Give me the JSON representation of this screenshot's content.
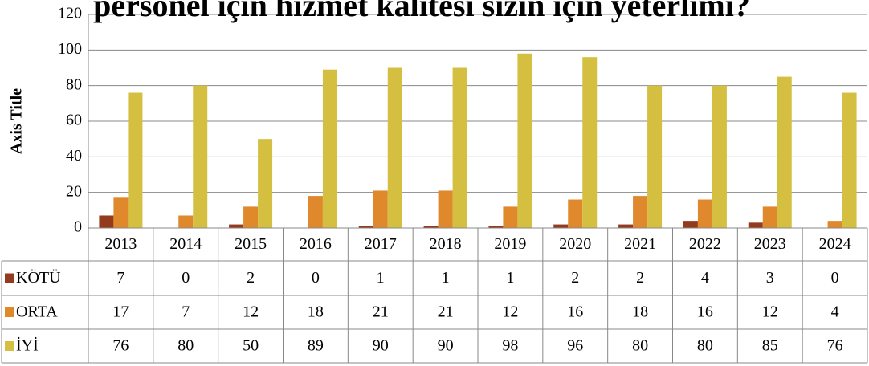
{
  "chart_data": {
    "type": "bar",
    "title": "personel için hizmet kalitesi  sizin için yeterlimi?",
    "y_axis_label": "Axis Title",
    "categories": [
      "2013",
      "2014",
      "2015",
      "2016",
      "2017",
      "2018",
      "2019",
      "2020",
      "2021",
      "2022",
      "2023",
      "2024"
    ],
    "series": [
      {
        "name": "KÖTÜ",
        "color": "#943b1d",
        "values": [
          7,
          0,
          2,
          0,
          1,
          1,
          1,
          2,
          2,
          4,
          3,
          0
        ]
      },
      {
        "name": "ORTA",
        "color": "#e0892c",
        "values": [
          17,
          7,
          12,
          18,
          21,
          21,
          12,
          16,
          18,
          16,
          12,
          4
        ]
      },
      {
        "name": "İYİ",
        "color": "#d4bf41",
        "values": [
          76,
          80,
          50,
          89,
          90,
          90,
          98,
          96,
          80,
          80,
          85,
          76
        ]
      }
    ],
    "ylim": [
      0,
      120
    ],
    "yticks": [
      0,
      20,
      40,
      60,
      80,
      100,
      120
    ],
    "grid": true
  }
}
